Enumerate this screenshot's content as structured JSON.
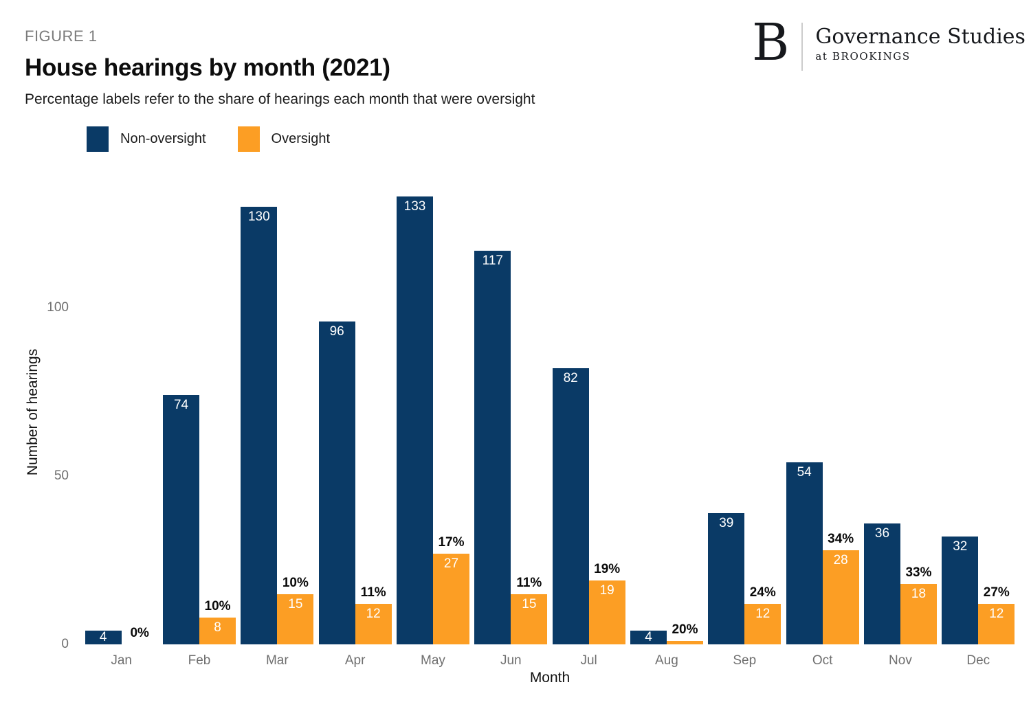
{
  "figure_label": "FIGURE 1",
  "title": "House hearings by month (2021)",
  "subtitle": "Percentage labels refer to the share of hearings each month that were oversight",
  "logo": {
    "letter": "B",
    "name": "Governance Studies",
    "sub": "at BROOKINGS"
  },
  "legend": [
    {
      "label": "Non-oversight",
      "color": "#0a3a66"
    },
    {
      "label": "Oversight",
      "color": "#fc9e24"
    }
  ],
  "colors": {
    "non_oversight": "#0a3a66",
    "oversight": "#fc9e24",
    "axis_text": "#6f6f6f",
    "background": "#ffffff"
  },
  "chart_data": {
    "type": "bar",
    "title": "House hearings by month (2021)",
    "subtitle": "Percentage labels refer to the share of hearings each month that were oversight",
    "xlabel": "Month",
    "ylabel": "Number of hearings",
    "categories": [
      "Jan",
      "Feb",
      "Mar",
      "Apr",
      "May",
      "Jun",
      "Jul",
      "Aug",
      "Sep",
      "Oct",
      "Nov",
      "Dec"
    ],
    "series": [
      {
        "name": "Non-oversight",
        "color": "#0a3a66",
        "values": [
          4,
          74,
          130,
          96,
          133,
          117,
          82,
          4,
          39,
          54,
          36,
          32
        ]
      },
      {
        "name": "Oversight",
        "color": "#fc9e24",
        "values": [
          0,
          8,
          15,
          12,
          27,
          15,
          19,
          1,
          12,
          28,
          18,
          12
        ]
      }
    ],
    "pct_labels": [
      "0%",
      "10%",
      "10%",
      "11%",
      "17%",
      "11%",
      "19%",
      "20%",
      "24%",
      "34%",
      "33%",
      "27%"
    ],
    "yticks": [
      0,
      50,
      100
    ],
    "ylim": [
      0,
      139
    ],
    "grid": false,
    "legend_position": "top-left"
  }
}
